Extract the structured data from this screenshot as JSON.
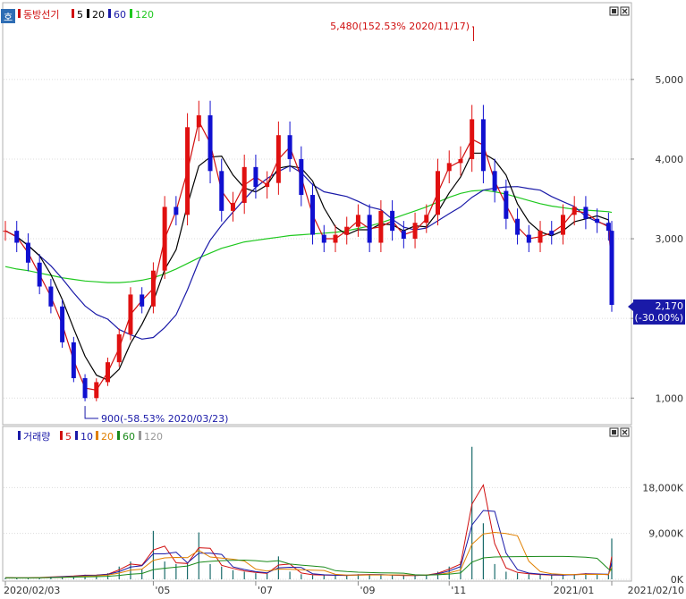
{
  "window": {
    "mode_badge": "호",
    "controls": [
      "□",
      "×"
    ]
  },
  "price_legend": {
    "name": "동방선기",
    "items": [
      {
        "label": "5",
        "color": "#d01010"
      },
      {
        "label": "20",
        "color": "#000000"
      },
      {
        "label": "60",
        "color": "#1a1aa8"
      },
      {
        "label": "120",
        "color": "#1ec81e"
      }
    ]
  },
  "volume_legend": {
    "name": "거래량",
    "items": [
      {
        "label": "5",
        "color": "#d01010"
      },
      {
        "label": "10",
        "color": "#1a1aa8"
      },
      {
        "label": "20",
        "color": "#e08000"
      },
      {
        "label": "60",
        "color": "#1a8a1a"
      },
      {
        "label": "120",
        "color": "#999999"
      }
    ]
  },
  "annotations": {
    "high": "5,480(152.53% 2020/11/17)",
    "low": "900(-58.53% 2020/03/23)"
  },
  "current_price": {
    "value": "2,170",
    "change": "(-30.00%)"
  },
  "chart_data": [
    {
      "type": "candlestick",
      "title": "동방선기",
      "x": [
        "2020/02/03",
        "2020/02/10",
        "2020/02/17",
        "2020/02/24",
        "2020/03/02",
        "2020/03/09",
        "2020/03/16",
        "2020/03/23",
        "2020/03/30",
        "2020/04/06",
        "2020/04/13",
        "2020/04/20",
        "2020/04/27",
        "2020/05/04",
        "2020/05/11",
        "2020/05/18",
        "2020/05/25",
        "2020/06/01",
        "2020/06/08",
        "2020/06/15",
        "2020/06/22",
        "2020/06/29",
        "2020/07/06",
        "2020/07/13",
        "2020/07/20",
        "2020/07/27",
        "2020/08/03",
        "2020/08/10",
        "2020/08/17",
        "2020/08/24",
        "2020/08/31",
        "2020/09/07",
        "2020/09/14",
        "2020/09/21",
        "2020/09/28",
        "2020/10/05",
        "2020/10/12",
        "2020/10/19",
        "2020/10/26",
        "2020/11/02",
        "2020/11/09",
        "2020/11/16",
        "2020/11/23",
        "2020/11/30",
        "2020/12/07",
        "2020/12/14",
        "2020/12/21",
        "2020/12/28",
        "2021/01/04",
        "2021/01/11",
        "2021/01/18",
        "2021/01/25",
        "2021/02/01",
        "2021/02/08",
        "2021/02/10"
      ],
      "close": [
        3100,
        2950,
        2700,
        2400,
        2150,
        1700,
        1250,
        1000,
        1200,
        1450,
        1800,
        2300,
        2150,
        2600,
        3400,
        3300,
        4400,
        4550,
        3850,
        3350,
        3450,
        3900,
        3650,
        3700,
        4300,
        4000,
        3550,
        3050,
        2950,
        3050,
        3150,
        3300,
        2950,
        3350,
        3100,
        3000,
        3200,
        3300,
        3850,
        3950,
        4000,
        4500,
        3850,
        3600,
        3250,
        3050,
        2950,
        3100,
        3050,
        3300,
        3400,
        3250,
        3200,
        3100,
        2170
      ],
      "high": 5480,
      "high_date": "2020/11/17",
      "low": 900,
      "low_date": "2020/03/23",
      "last_close": 2170,
      "last_change_pct": -30.0,
      "moving_averages": [
        "5",
        "20",
        "60",
        "120"
      ],
      "ma120": [
        2650,
        2620,
        2600,
        2570,
        2540,
        2510,
        2490,
        2470,
        2460,
        2450,
        2450,
        2460,
        2480,
        2510,
        2560,
        2620,
        2690,
        2760,
        2820,
        2880,
        2920,
        2960,
        2980,
        3000,
        3020,
        3040,
        3050,
        3060,
        3070,
        3080,
        3100,
        3130,
        3160,
        3200,
        3250,
        3300,
        3350,
        3400,
        3460,
        3520,
        3570,
        3600,
        3610,
        3590,
        3560,
        3520,
        3480,
        3440,
        3410,
        3390,
        3370,
        3360,
        3350,
        3340,
        3330
      ],
      "yticks": [
        1000,
        2000,
        3000,
        4000,
        5000
      ],
      "ytick_labels": [
        "1,000",
        "",
        "3,000",
        "4,000",
        "5,000"
      ],
      "ylim": [
        700,
        5750
      ],
      "xtick_labels": [
        {
          "date": "2020/02/03",
          "label": "2020/02/03"
        },
        {
          "date": "2020/05/04",
          "label": "'05"
        },
        {
          "date": "2020/07/06",
          "label": "'07"
        },
        {
          "date": "2020/09/07",
          "label": "'09"
        },
        {
          "date": "2020/11/02",
          "label": "'11"
        },
        {
          "date": "2021/01/04",
          "label": "2021/01"
        },
        {
          "date": "2021/02/10",
          "label": "2021/02/10"
        }
      ]
    },
    {
      "type": "bar",
      "title": "거래량",
      "x": [
        "2020/02/03",
        "2020/02/10",
        "2020/02/17",
        "2020/02/24",
        "2020/03/02",
        "2020/03/09",
        "2020/03/16",
        "2020/03/23",
        "2020/03/30",
        "2020/04/06",
        "2020/04/13",
        "2020/04/20",
        "2020/04/27",
        "2020/05/04",
        "2020/05/11",
        "2020/05/18",
        "2020/05/25",
        "2020/06/01",
        "2020/06/08",
        "2020/06/15",
        "2020/06/22",
        "2020/06/29",
        "2020/07/06",
        "2020/07/13",
        "2020/07/20",
        "2020/07/27",
        "2020/08/03",
        "2020/08/10",
        "2020/08/17",
        "2020/08/24",
        "2020/08/31",
        "2020/09/07",
        "2020/09/14",
        "2020/09/21",
        "2020/09/28",
        "2020/10/05",
        "2020/10/12",
        "2020/10/19",
        "2020/10/26",
        "2020/11/02",
        "2020/11/09",
        "2020/11/16",
        "2020/11/23",
        "2020/11/30",
        "2020/12/07",
        "2020/12/14",
        "2020/12/21",
        "2020/12/28",
        "2021/01/04",
        "2021/01/11",
        "2021/01/18",
        "2021/01/25",
        "2021/02/01",
        "2021/02/08",
        "2021/02/10"
      ],
      "values": [
        300,
        250,
        300,
        400,
        500,
        600,
        700,
        900,
        800,
        1200,
        2500,
        3500,
        2000,
        9500,
        3500,
        3000,
        3200,
        9200,
        3000,
        2500,
        1800,
        1500,
        1200,
        1100,
        4500,
        1500,
        1000,
        800,
        900,
        700,
        800,
        1000,
        900,
        900,
        800,
        700,
        800,
        900,
        1500,
        2500,
        3500,
        26000,
        11000,
        3000,
        1500,
        1200,
        1000,
        900,
        800,
        900,
        1000,
        1200,
        900,
        900,
        8000
      ],
      "moving_averages": [
        "5",
        "10",
        "20",
        "60",
        "120"
      ],
      "yticks": [
        0,
        9000,
        18000
      ],
      "ytick_labels": [
        "0K",
        "9,000K",
        "18,000K"
      ],
      "ylim": [
        0,
        27000
      ]
    }
  ]
}
